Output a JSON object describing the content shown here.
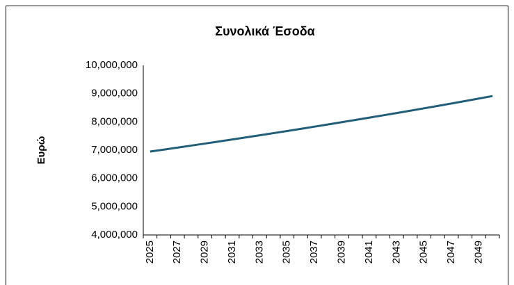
{
  "chart_data": {
    "type": "line",
    "title": "Συνολικά Έσοδα",
    "y_label": "Ευρώ",
    "categories": [
      "2025",
      null,
      "2027",
      null,
      "2029",
      null,
      "2031",
      null,
      "2033",
      null,
      "2035",
      null,
      "2037",
      null,
      "2039",
      null,
      "2041",
      null,
      "2043",
      null,
      "2045",
      null,
      "2047",
      null,
      "2049",
      null
    ],
    "series": [
      {
        "name": "Συνολικά Έσοδα",
        "color": "#215f78",
        "values": [
          6950000,
          7019000,
          7090000,
          7161000,
          7232000,
          7305000,
          7378000,
          7451000,
          7526000,
          7601000,
          7677000,
          7754000,
          7831000,
          7910000,
          7989000,
          8069000,
          8149000,
          8231000,
          8313000,
          8396000,
          8480000,
          8565000,
          8651000,
          8737000,
          8825000,
          8913000
        ]
      }
    ],
    "ylim": [
      4000000,
      10000000
    ],
    "yticks": [
      {
        "value": 4000000,
        "label": "4,000,000"
      },
      {
        "value": 5000000,
        "label": "5,000,000"
      },
      {
        "value": 6000000,
        "label": "6,000,000"
      },
      {
        "value": 7000000,
        "label": "7,000,000"
      },
      {
        "value": 8000000,
        "label": "8,000,000"
      },
      {
        "value": 9000000,
        "label": "9,000,000"
      },
      {
        "value": 10000000,
        "label": "10,000,000"
      }
    ],
    "grid": false
  }
}
